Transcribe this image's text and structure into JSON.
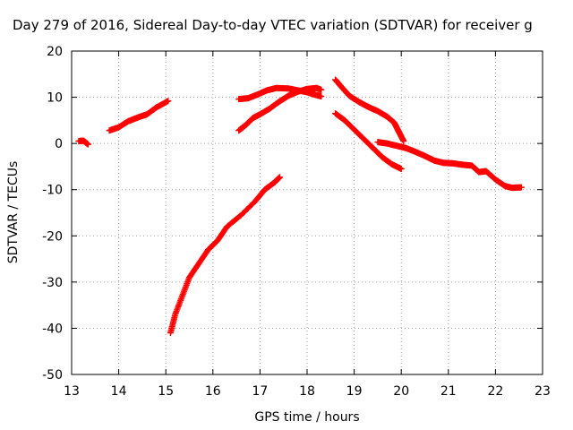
{
  "chart_data": {
    "type": "scatter",
    "title": "Day 279 of 2016, Sidereal Day-to-day VTEC variation (SDTVAR) for receiver g",
    "xlabel": "GPS time / hours",
    "ylabel": "SDTVAR / TECUs",
    "xlim": [
      13,
      23
    ],
    "ylim": [
      -50,
      20
    ],
    "xticks": [
      13,
      14,
      15,
      16,
      17,
      18,
      19,
      20,
      21,
      22,
      23
    ],
    "yticks": [
      -50,
      -40,
      -30,
      -20,
      -10,
      0,
      10,
      20
    ],
    "grid": true,
    "marker": "plus",
    "color": "#ff0000",
    "series": [
      {
        "points": [
          [
            13.15,
            0.5
          ],
          [
            13.25,
            0.6
          ],
          [
            13.35,
            -0.2
          ]
        ]
      },
      {
        "points": [
          [
            13.8,
            2.8
          ],
          [
            14.0,
            3.5
          ],
          [
            14.2,
            4.8
          ],
          [
            14.4,
            5.6
          ],
          [
            14.6,
            6.3
          ],
          [
            14.8,
            7.8
          ],
          [
            15.05,
            9.2
          ]
        ]
      },
      {
        "points": [
          [
            15.1,
            -41
          ],
          [
            15.2,
            -37
          ],
          [
            15.35,
            -33
          ],
          [
            15.5,
            -29
          ],
          [
            15.7,
            -26
          ],
          [
            15.9,
            -23
          ],
          [
            16.1,
            -21
          ],
          [
            16.3,
            -18
          ],
          [
            16.6,
            -15.5
          ],
          [
            16.9,
            -12.5
          ],
          [
            17.1,
            -10
          ],
          [
            17.3,
            -8.5
          ],
          [
            17.42,
            -7.3
          ]
        ]
      },
      {
        "points": [
          [
            16.55,
            9.6
          ],
          [
            16.75,
            9.8
          ],
          [
            16.95,
            10.6
          ],
          [
            17.15,
            11.5
          ],
          [
            17.35,
            12.0
          ],
          [
            17.6,
            11.9
          ],
          [
            17.8,
            11.5
          ],
          [
            18.0,
            11.1
          ],
          [
            18.15,
            10.6
          ],
          [
            18.3,
            10.2
          ]
        ]
      },
      {
        "points": [
          [
            16.55,
            2.8
          ],
          [
            16.7,
            4.0
          ],
          [
            16.85,
            5.5
          ],
          [
            17.0,
            6.3
          ],
          [
            17.2,
            7.5
          ],
          [
            17.4,
            9.0
          ],
          [
            17.6,
            10.3
          ],
          [
            17.8,
            11.2
          ],
          [
            18.0,
            11.8
          ],
          [
            18.2,
            12.0
          ],
          [
            18.3,
            11.6
          ]
        ]
      },
      {
        "points": [
          [
            18.6,
            13.8
          ],
          [
            18.75,
            12.0
          ],
          [
            18.9,
            10.3
          ],
          [
            19.1,
            9.0
          ],
          [
            19.3,
            7.9
          ],
          [
            19.5,
            7.0
          ],
          [
            19.7,
            5.8
          ],
          [
            19.85,
            4.5
          ],
          [
            19.95,
            2.5
          ],
          [
            20.05,
            0.5
          ]
        ]
      },
      {
        "points": [
          [
            18.6,
            6.5
          ],
          [
            18.8,
            5.0
          ],
          [
            19.0,
            3.0
          ],
          [
            19.2,
            1.0
          ],
          [
            19.4,
            -1.0
          ],
          [
            19.6,
            -3.0
          ],
          [
            19.8,
            -4.5
          ],
          [
            20.0,
            -5.5
          ]
        ]
      },
      {
        "points": [
          [
            19.5,
            0.3
          ],
          [
            19.7,
            0.0
          ],
          [
            19.9,
            -0.5
          ],
          [
            20.1,
            -1.0
          ],
          [
            20.3,
            -1.8
          ],
          [
            20.5,
            -2.7
          ],
          [
            20.7,
            -3.7
          ],
          [
            20.9,
            -4.2
          ],
          [
            21.1,
            -4.3
          ],
          [
            21.3,
            -4.6
          ],
          [
            21.5,
            -4.8
          ],
          [
            21.65,
            -6.2
          ],
          [
            21.8,
            -6.0
          ],
          [
            22.0,
            -7.8
          ],
          [
            22.2,
            -9.2
          ],
          [
            22.35,
            -9.6
          ],
          [
            22.55,
            -9.5
          ]
        ]
      }
    ]
  }
}
